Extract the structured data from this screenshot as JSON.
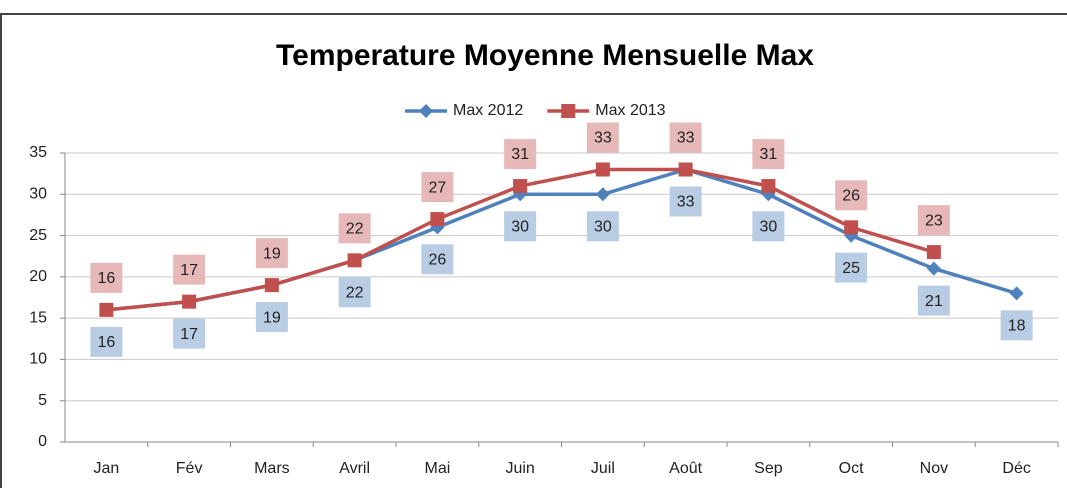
{
  "chart_data": {
    "type": "line",
    "title": "Temperature Moyenne Mensuelle Max",
    "categories": [
      "Jan",
      "Fév",
      "Mars",
      "Avril",
      "Mai",
      "Juin",
      "Juil",
      "Août",
      "Sep",
      "Oct",
      "Nov",
      "Déc"
    ],
    "series": [
      {
        "name": "Max 2012",
        "color": "#4f81bd",
        "label_color": "#b8cce4",
        "values": [
          16,
          17,
          19,
          22,
          26,
          30,
          30,
          33,
          30,
          25,
          21,
          18
        ]
      },
      {
        "name": "Max 2013",
        "color": "#c0504d",
        "label_color": "#e6b9b8",
        "values": [
          16,
          17,
          19,
          22,
          27,
          31,
          33,
          33,
          31,
          26,
          23,
          null
        ]
      }
    ],
    "ylim": [
      0,
      35
    ],
    "yticks": [
      0,
      5,
      10,
      15,
      20,
      25,
      30,
      35
    ],
    "grid": true,
    "legend": "top"
  }
}
